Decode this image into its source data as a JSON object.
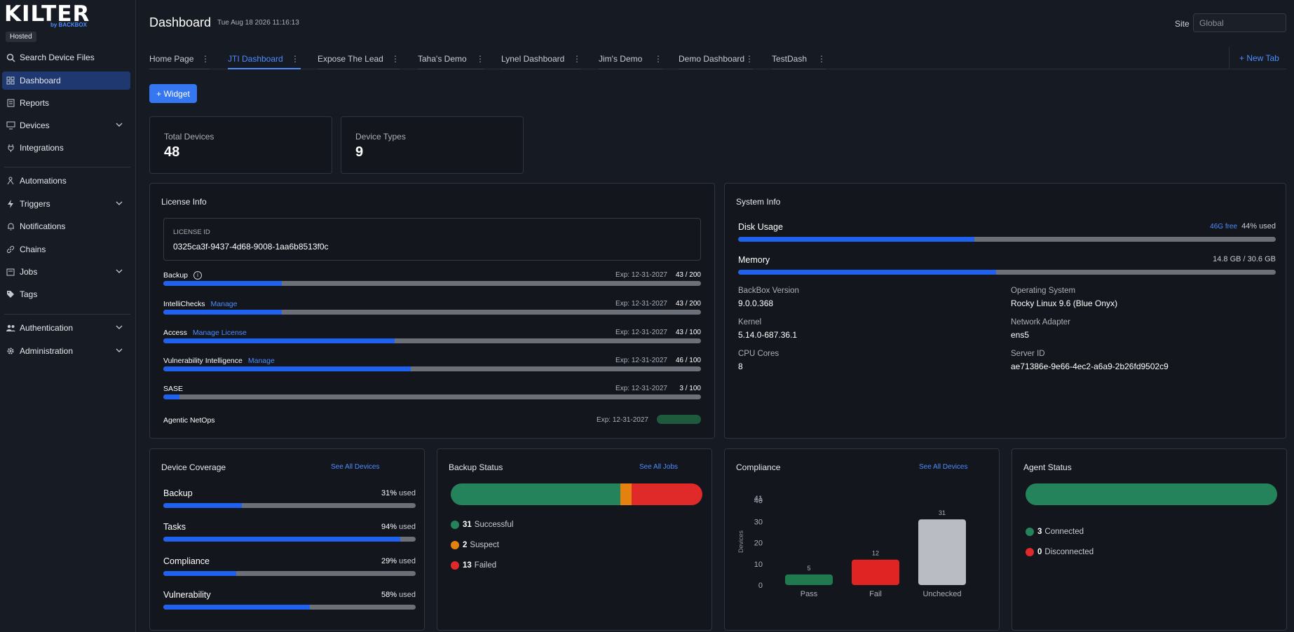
{
  "sidebar": {
    "logo": "KILTER",
    "logo_by": "by BACKBOX",
    "hosted": "Hosted",
    "items": [
      {
        "label": "Search Device Files",
        "icon": "search-icon"
      },
      {
        "label": "Dashboard",
        "icon": "grid-icon",
        "active": true
      },
      {
        "label": "Reports",
        "icon": "report-icon"
      },
      {
        "label": "Devices",
        "icon": "monitor-icon",
        "expandable": true
      },
      {
        "label": "Integrations",
        "icon": "plug-icon"
      },
      {
        "label": "Automations",
        "icon": "automation-icon"
      },
      {
        "label": "Triggers",
        "icon": "bolt-icon",
        "expandable": true
      },
      {
        "label": "Notifications",
        "icon": "bell-icon"
      },
      {
        "label": "Chains",
        "icon": "chain-icon"
      },
      {
        "label": "Jobs",
        "icon": "jobs-icon",
        "expandable": true
      },
      {
        "label": "Tags",
        "icon": "tag-icon"
      },
      {
        "label": "Authentication",
        "icon": "users-icon",
        "expandable": true
      },
      {
        "label": "Administration",
        "icon": "gear-icon",
        "expandable": true
      }
    ]
  },
  "header": {
    "title": "Dashboard",
    "timestamp": "Tue Aug 18 2026 11:16:13",
    "site_label": "Site",
    "site_value": "Global"
  },
  "tabs": [
    {
      "label": "Home Page"
    },
    {
      "label": "JTI Dashboard",
      "active": true
    },
    {
      "label": "Expose The Lead"
    },
    {
      "label": "Taha's Demo"
    },
    {
      "label": "Lynel Dashboard"
    },
    {
      "label": "Jim's Demo"
    },
    {
      "label": "Demo Dashboard"
    },
    {
      "label": "TestDash"
    }
  ],
  "new_tab_label": "+ New Tab",
  "widget_button": "+ Widget",
  "stats": [
    {
      "label": "Total Devices",
      "value": "48"
    },
    {
      "label": "Device Types",
      "value": "9"
    }
  ],
  "license": {
    "title": "License Info",
    "id_label": "LICENSE ID",
    "id": "0325ca3f-9437-4d68-9008-1aa6b8513f0c",
    "rows": [
      {
        "name": "Backup",
        "link": "",
        "exp": "Exp: 12-31-2027",
        "count": "43 / 200",
        "fraction": 0.22
      },
      {
        "name": "IntelliChecks",
        "link": "Manage",
        "exp": "Exp: 12-31-2027",
        "count": "43 / 200",
        "fraction": 0.22
      },
      {
        "name": "Access",
        "link": "Manage License",
        "exp": "Exp: 12-31-2027",
        "count": "43 / 100",
        "fraction": 0.43
      },
      {
        "name": "Vulnerability Intelligence",
        "link": "Manage",
        "exp": "Exp: 12-31-2027",
        "count": "46 / 100",
        "fraction": 0.46
      },
      {
        "name": "SASE",
        "link": "",
        "exp": "Exp: 12-31-2027",
        "count": "3 / 100",
        "fraction": 0.03
      }
    ],
    "agentic": {
      "name": "Agentic NetOps",
      "exp": "Exp: 12-31-2027"
    }
  },
  "system": {
    "title": "System Info",
    "disk": {
      "name": "Disk Usage",
      "free": "46G free",
      "used": "44% used",
      "fraction": 0.44
    },
    "memory": {
      "name": "Memory",
      "value": "14.8 GB / 30.6 GB",
      "fraction": 0.48
    },
    "fields": [
      {
        "label": "BackBox Version",
        "value": "9.0.0.368"
      },
      {
        "label": "Operating System",
        "value": "Rocky Linux 9.6 (Blue Onyx)"
      },
      {
        "label": "Kernel",
        "value": "5.14.0-687.36.1"
      },
      {
        "label": "Network Adapter",
        "value": "ens5"
      },
      {
        "label": "CPU Cores",
        "value": "8"
      },
      {
        "label": "Server ID",
        "value": "ae71386e-9e66-4ec2-a6a9-2b26fd9502c9"
      }
    ]
  },
  "coverage": {
    "title": "Device Coverage",
    "link": "See All Devices",
    "rows": [
      {
        "name": "Backup",
        "pct": "31%",
        "suffix": "used",
        "fraction": 0.31
      },
      {
        "name": "Tasks",
        "pct": "94%",
        "suffix": "used",
        "fraction": 0.94
      },
      {
        "name": "Compliance",
        "pct": "29%",
        "suffix": "used",
        "fraction": 0.29
      },
      {
        "name": "Vulnerability",
        "pct": "58%",
        "suffix": "used",
        "fraction": 0.58
      }
    ]
  },
  "backup": {
    "title": "Backup Status",
    "link": "See All Jobs",
    "segments": [
      {
        "label": "Successful",
        "count": "31",
        "value": 31,
        "color": "#24835a"
      },
      {
        "label": "Suspect",
        "count": "2",
        "value": 2,
        "color": "#e5820f"
      },
      {
        "label": "Failed",
        "count": "13",
        "value": 13,
        "color": "#e02929"
      }
    ]
  },
  "compliance": {
    "title": "Compliance",
    "link": "See All Devices",
    "chart_data": {
      "type": "bar",
      "categories": [
        "Pass",
        "Fail",
        "Unchecked"
      ],
      "values": [
        5,
        12,
        31
      ],
      "colors": [
        "#1f7a4d",
        "#e02424",
        "#b9bcc3"
      ],
      "ylabel": "Devices",
      "yticks": [
        "0",
        "10",
        "20",
        "30",
        "40",
        "41"
      ],
      "ylim": [
        0,
        41
      ]
    }
  },
  "agent": {
    "title": "Agent Status",
    "rows": [
      {
        "label": "Connected",
        "count": "3",
        "value": 3,
        "color": "#24835a"
      },
      {
        "label": "Disconnected",
        "count": "0",
        "value": 0,
        "color": "#e02929"
      }
    ]
  }
}
